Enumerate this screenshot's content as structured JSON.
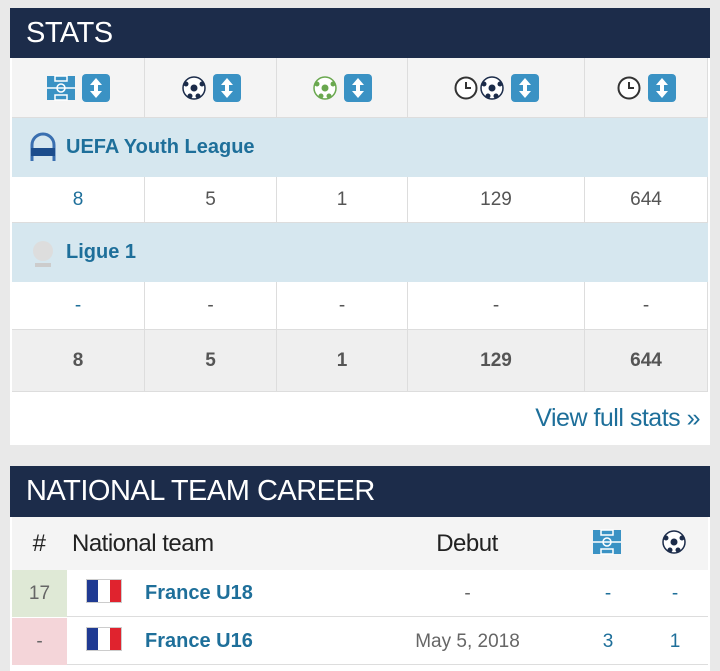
{
  "stats": {
    "title": "STATS",
    "competitions": [
      {
        "name": "UEFA Youth League",
        "values": [
          8,
          5,
          1,
          129,
          644
        ]
      },
      {
        "name": "Ligue 1",
        "values": [
          "-",
          "-",
          "-",
          "-",
          "-"
        ]
      }
    ],
    "totals": [
      8,
      5,
      1,
      129,
      644
    ],
    "link": "View full stats »"
  },
  "national": {
    "title": "NATIONAL TEAM CAREER",
    "headers": [
      "#",
      "National team",
      "Debut"
    ],
    "rows": [
      {
        "number": 17,
        "team": "France U18",
        "debut": "-",
        "apps": "-",
        "goals": "-"
      },
      {
        "number": "-",
        "team": "France U16",
        "debut": "May 5, 2018",
        "apps": 3,
        "goals": 1
      }
    ]
  }
}
